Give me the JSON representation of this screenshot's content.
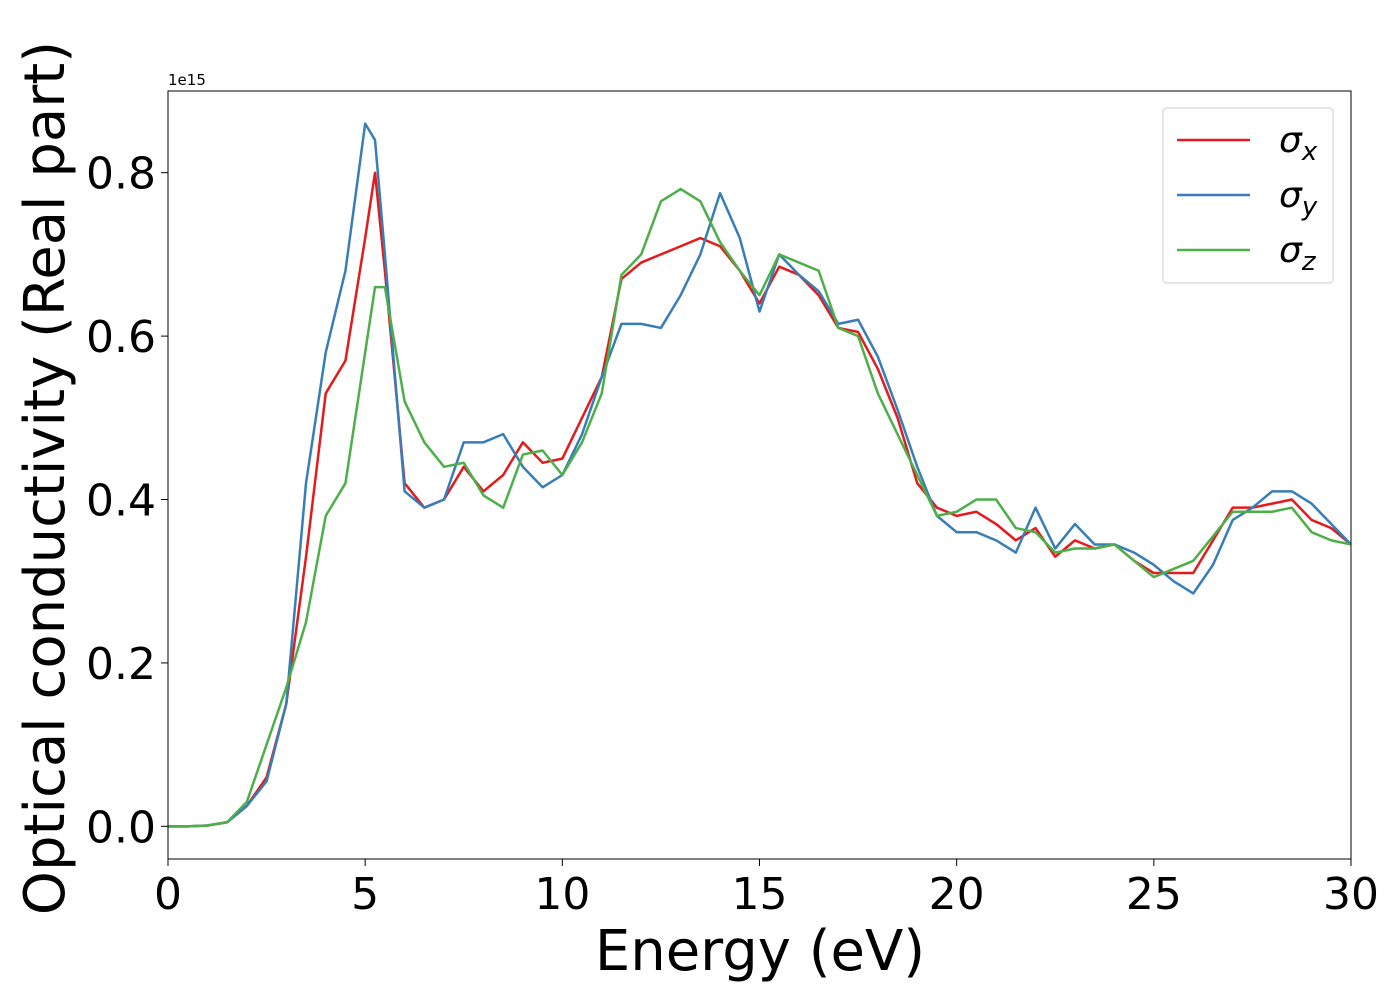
{
  "chart_data": {
    "type": "line",
    "xlabel": "Energy (eV)",
    "ylabel": "Optical conductivity (Real part)",
    "offset_text": "1e15",
    "x": [
      0,
      0.5,
      1,
      1.5,
      2,
      2.5,
      3,
      3.5,
      4,
      4.5,
      5,
      5.25,
      5.5,
      6,
      6.5,
      7,
      7.5,
      8,
      8.5,
      9,
      9.5,
      10,
      10.5,
      11,
      11.5,
      12,
      12.5,
      13,
      13.5,
      14,
      14.5,
      15,
      15.5,
      16,
      16.5,
      17,
      17.5,
      18,
      18.5,
      19,
      19.5,
      20,
      20.5,
      21,
      21.5,
      22,
      22.5,
      23,
      23.5,
      24,
      24.5,
      25,
      25.5,
      26,
      26.5,
      27,
      27.5,
      28,
      28.5,
      29,
      29.5,
      30
    ],
    "series": [
      {
        "name": "σx",
        "color": "#e41a1c",
        "values": [
          0,
          0,
          0.001,
          0.005,
          0.025,
          0.06,
          0.15,
          0.33,
          0.53,
          0.57,
          0.72,
          0.8,
          0.68,
          0.42,
          0.39,
          0.4,
          0.44,
          0.41,
          0.43,
          0.47,
          0.445,
          0.45,
          0.5,
          0.55,
          0.67,
          0.69,
          0.7,
          0.71,
          0.72,
          0.71,
          0.68,
          0.64,
          0.685,
          0.675,
          0.65,
          0.61,
          0.605,
          0.56,
          0.5,
          0.42,
          0.39,
          0.38,
          0.385,
          0.37,
          0.35,
          0.365,
          0.33,
          0.35,
          0.34,
          0.345,
          0.325,
          0.31,
          0.31,
          0.31,
          0.35,
          0.39,
          0.39,
          0.395,
          0.4,
          0.375,
          0.365,
          0.345
        ]
      },
      {
        "name": "σy",
        "color": "#377eb8",
        "values": [
          0,
          0,
          0.001,
          0.005,
          0.025,
          0.055,
          0.15,
          0.42,
          0.58,
          0.68,
          0.86,
          0.84,
          0.7,
          0.41,
          0.39,
          0.4,
          0.47,
          0.47,
          0.48,
          0.44,
          0.415,
          0.43,
          0.48,
          0.55,
          0.615,
          0.615,
          0.61,
          0.65,
          0.7,
          0.775,
          0.72,
          0.63,
          0.7,
          0.675,
          0.655,
          0.615,
          0.62,
          0.575,
          0.51,
          0.44,
          0.38,
          0.36,
          0.36,
          0.35,
          0.335,
          0.39,
          0.34,
          0.37,
          0.345,
          0.345,
          0.335,
          0.32,
          0.3,
          0.285,
          0.32,
          0.375,
          0.39,
          0.41,
          0.41,
          0.395,
          0.37,
          0.345
        ]
      },
      {
        "name": "σz",
        "color": "#4daf4a",
        "values": [
          0,
          0,
          0.001,
          0.005,
          0.03,
          0.1,
          0.17,
          0.25,
          0.38,
          0.42,
          0.58,
          0.66,
          0.66,
          0.52,
          0.47,
          0.44,
          0.445,
          0.405,
          0.39,
          0.455,
          0.46,
          0.43,
          0.47,
          0.53,
          0.675,
          0.7,
          0.765,
          0.78,
          0.765,
          0.715,
          0.68,
          0.65,
          0.7,
          0.69,
          0.68,
          0.61,
          0.6,
          0.53,
          0.48,
          0.43,
          0.38,
          0.385,
          0.4,
          0.4,
          0.365,
          0.36,
          0.335,
          0.34,
          0.34,
          0.345,
          0.325,
          0.305,
          0.315,
          0.325,
          0.355,
          0.385,
          0.385,
          0.385,
          0.39,
          0.36,
          0.35,
          0.345
        ]
      }
    ],
    "xlim": [
      0,
      30
    ],
    "xticks": [
      0,
      5,
      10,
      15,
      20,
      25,
      30
    ],
    "ylim": [
      -0.04,
      0.9
    ],
    "yticks": [
      {
        "value": 0,
        "label": "0.0"
      },
      0.2,
      0.4,
      0.6,
      0.8
    ],
    "legend": "upper right",
    "grid": false
  }
}
